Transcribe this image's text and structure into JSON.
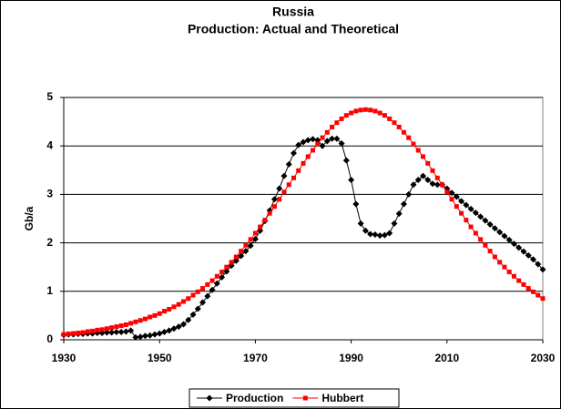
{
  "chart_data": {
    "type": "line",
    "title": "Russia",
    "subtitle": "Production: Actual and Theoretical",
    "ylabel": "Gb/a",
    "x": [
      1930,
      1931,
      1932,
      1933,
      1934,
      1935,
      1936,
      1937,
      1938,
      1939,
      1940,
      1941,
      1942,
      1943,
      1944,
      1945,
      1946,
      1947,
      1948,
      1949,
      1950,
      1951,
      1952,
      1953,
      1954,
      1955,
      1956,
      1957,
      1958,
      1959,
      1960,
      1961,
      1962,
      1963,
      1964,
      1965,
      1966,
      1967,
      1968,
      1969,
      1970,
      1971,
      1972,
      1973,
      1974,
      1975,
      1976,
      1977,
      1978,
      1979,
      1980,
      1981,
      1982,
      1983,
      1984,
      1985,
      1986,
      1987,
      1988,
      1989,
      1990,
      1991,
      1992,
      1993,
      1994,
      1995,
      1996,
      1997,
      1998,
      1999,
      2000,
      2001,
      2002,
      2003,
      2004,
      2005,
      2006,
      2007,
      2008,
      2009,
      2010,
      2011,
      2012,
      2013,
      2014,
      2015,
      2016,
      2017,
      2018,
      2019,
      2020,
      2021,
      2022,
      2023,
      2024,
      2025,
      2026,
      2027,
      2028,
      2029,
      2030
    ],
    "series": [
      {
        "name": "Production",
        "color": "#000000",
        "marker": "diamond",
        "values": [
          0.1,
          0.11,
          0.11,
          0.12,
          0.12,
          0.13,
          0.13,
          0.14,
          0.14,
          0.15,
          0.15,
          0.16,
          0.16,
          0.17,
          0.19,
          0.05,
          0.06,
          0.08,
          0.09,
          0.11,
          0.13,
          0.16,
          0.19,
          0.23,
          0.27,
          0.32,
          0.41,
          0.52,
          0.64,
          0.77,
          0.9,
          1.03,
          1.16,
          1.29,
          1.41,
          1.53,
          1.63,
          1.73,
          1.83,
          1.94,
          2.08,
          2.25,
          2.45,
          2.67,
          2.9,
          3.12,
          3.38,
          3.62,
          3.85,
          4.02,
          4.08,
          4.12,
          4.14,
          4.12,
          4.0,
          4.1,
          4.15,
          4.15,
          4.05,
          3.7,
          3.3,
          2.8,
          2.4,
          2.25,
          2.18,
          2.17,
          2.15,
          2.16,
          2.2,
          2.4,
          2.6,
          2.8,
          3.0,
          3.2,
          3.3,
          3.38,
          3.3,
          3.22,
          3.2,
          3.2,
          3.12,
          3.03,
          2.95,
          2.86,
          2.78,
          2.7,
          2.62,
          2.54,
          2.46,
          2.38,
          2.3,
          2.22,
          2.14,
          2.06,
          1.98,
          1.9,
          1.82,
          1.74,
          1.66,
          1.56,
          1.45
        ]
      },
      {
        "name": "Hubbert",
        "color": "#ff0000",
        "marker": "square",
        "values": [
          0.11,
          0.12,
          0.13,
          0.14,
          0.15,
          0.17,
          0.18,
          0.2,
          0.21,
          0.23,
          0.25,
          0.27,
          0.29,
          0.31,
          0.34,
          0.37,
          0.4,
          0.43,
          0.47,
          0.5,
          0.54,
          0.59,
          0.63,
          0.68,
          0.73,
          0.79,
          0.85,
          0.92,
          0.99,
          1.06,
          1.14,
          1.22,
          1.31,
          1.4,
          1.5,
          1.6,
          1.71,
          1.83,
          1.95,
          2.07,
          2.2,
          2.33,
          2.47,
          2.61,
          2.75,
          2.9,
          3.05,
          3.2,
          3.34,
          3.49,
          3.64,
          3.78,
          3.91,
          4.04,
          4.17,
          4.28,
          4.39,
          4.48,
          4.56,
          4.63,
          4.68,
          4.72,
          4.74,
          4.75,
          4.74,
          4.72,
          4.68,
          4.63,
          4.56,
          4.48,
          4.39,
          4.28,
          4.17,
          4.04,
          3.91,
          3.78,
          3.64,
          3.49,
          3.34,
          3.2,
          3.05,
          2.9,
          2.75,
          2.61,
          2.47,
          2.33,
          2.2,
          2.07,
          1.95,
          1.83,
          1.71,
          1.6,
          1.5,
          1.4,
          1.31,
          1.22,
          1.14,
          1.06,
          0.99,
          0.92,
          0.85
        ]
      }
    ],
    "xlim": [
      1930,
      2030
    ],
    "xticks": [
      1930,
      1950,
      1970,
      1990,
      2010,
      2030
    ],
    "ylim": [
      0,
      5
    ],
    "yticks": [
      0,
      1,
      2,
      3,
      4,
      5
    ],
    "grid": true,
    "legend": "bottom"
  }
}
